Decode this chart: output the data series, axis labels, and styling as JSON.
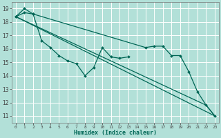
{
  "xlabel": "Humidex (Indice chaleur)",
  "background_color": "#b2e0d8",
  "grid_color": "#ffffff",
  "line_color": "#006655",
  "xlim": [
    -0.5,
    23.5
  ],
  "ylim": [
    10.5,
    19.5
  ],
  "xticks": [
    0,
    1,
    2,
    3,
    4,
    5,
    6,
    7,
    8,
    9,
    10,
    11,
    12,
    13,
    14,
    15,
    16,
    17,
    18,
    19,
    20,
    21,
    22,
    23
  ],
  "xtick_labels": [
    "0",
    "1",
    "2",
    "3",
    "4",
    "5",
    "6",
    "7",
    "8",
    "9",
    "10",
    "11",
    "12",
    "13",
    "14",
    "15",
    "16",
    "17",
    "18",
    "19",
    "20",
    "21",
    "22",
    "23"
  ],
  "yticks": [
    11,
    12,
    13,
    14,
    15,
    16,
    17,
    18,
    19
  ],
  "line1_x": [
    0,
    1,
    2,
    3,
    4,
    5,
    6,
    7,
    8,
    9,
    10,
    11,
    12,
    13
  ],
  "line1_y": [
    18.4,
    19.0,
    18.6,
    16.6,
    16.1,
    15.5,
    15.1,
    14.9,
    14.0,
    14.6,
    16.1,
    15.4,
    15.3,
    15.4
  ],
  "line2_x": [
    0,
    1,
    2,
    15,
    16,
    17,
    18,
    19,
    20,
    21,
    22,
    23
  ],
  "line2_y": [
    18.4,
    18.7,
    18.6,
    16.1,
    16.2,
    16.2,
    15.5,
    15.5,
    14.3,
    12.8,
    11.8,
    11.0
  ],
  "line3_x": [
    0,
    23
  ],
  "line3_y": [
    18.4,
    11.0
  ],
  "line4_x": [
    0,
    22,
    23
  ],
  "line4_y": [
    18.4,
    11.8,
    11.0
  ]
}
